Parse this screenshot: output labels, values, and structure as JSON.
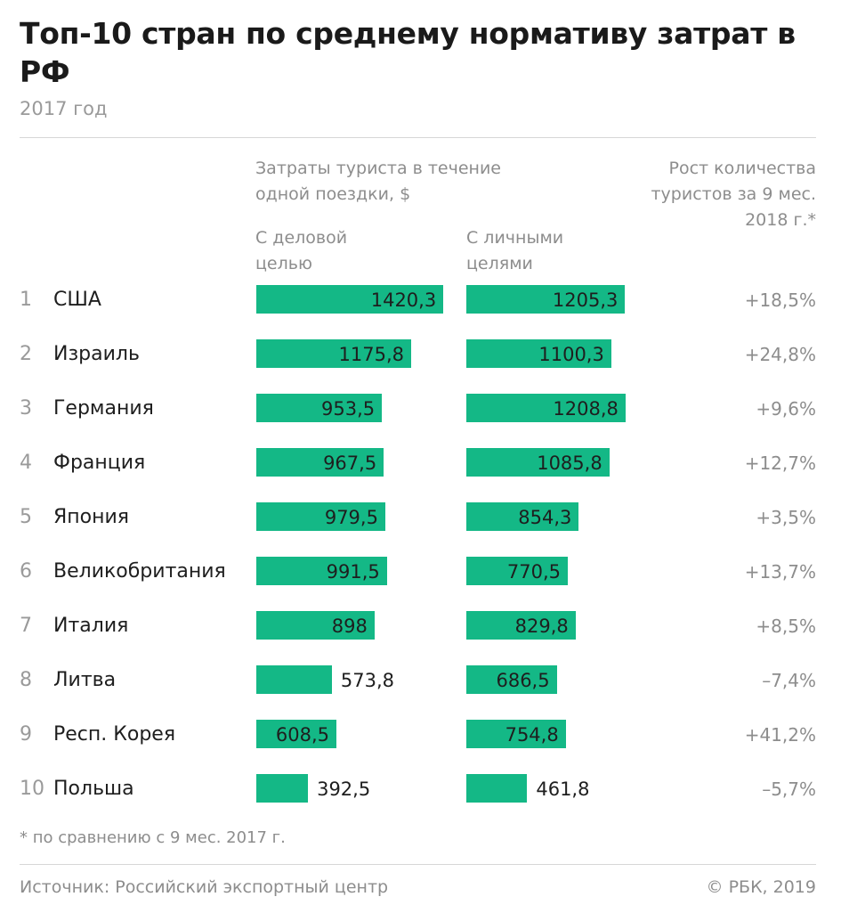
{
  "header": {
    "title": "Топ-10 стран по среднему нормативу затрат в РФ",
    "subtitle": "2017 год"
  },
  "columns": {
    "costs_header": "Затраты туриста в течение одной поездки, $",
    "business_header": "С деловой целью",
    "personal_header": "С личными целями",
    "growth_header": "Рост количества туристов за 9 мес. 2018 г.*"
  },
  "footer": {
    "footnote": "* по сравнению с 9 мес. 2017 г.",
    "source": "Источник: Российский экспортный центр",
    "copyright": "© РБК, 2019"
  },
  "colors": {
    "bar": "#14b886"
  },
  "chart_data": {
    "type": "bar",
    "categories": [
      "США",
      "Израиль",
      "Германия",
      "Франция",
      "Япония",
      "Великобритания",
      "Италия",
      "Литва",
      "Респ. Корея",
      "Польша"
    ],
    "ranks": [
      "1",
      "2",
      "3",
      "4",
      "5",
      "6",
      "7",
      "8",
      "9",
      "10"
    ],
    "series": [
      {
        "name": "С деловой целью",
        "values": [
          1420.3,
          1175.8,
          953.5,
          967.5,
          979.5,
          991.5,
          898,
          573.8,
          608.5,
          392.5
        ],
        "labels": [
          "1420,3",
          "1175,8",
          "953,5",
          "967,5",
          "979,5",
          "991,5",
          "898",
          "573,8",
          "608,5",
          "392,5"
        ]
      },
      {
        "name": "С личными целями",
        "values": [
          1205.3,
          1100.3,
          1208.8,
          1085.8,
          854.3,
          770.5,
          829.8,
          686.5,
          754.8,
          461.8
        ],
        "labels": [
          "1205,3",
          "1100,3",
          "1208,8",
          "1085,8",
          "854,3",
          "770,5",
          "829,8",
          "686,5",
          "754,8",
          "461,8"
        ]
      }
    ],
    "growth": [
      "+18,5%",
      "+24,8%",
      "+9,6%",
      "+12,7%",
      "+3,5%",
      "+13,7%",
      "+8,5%",
      "–7,4%",
      "+41,2%",
      "–5,7%"
    ]
  }
}
